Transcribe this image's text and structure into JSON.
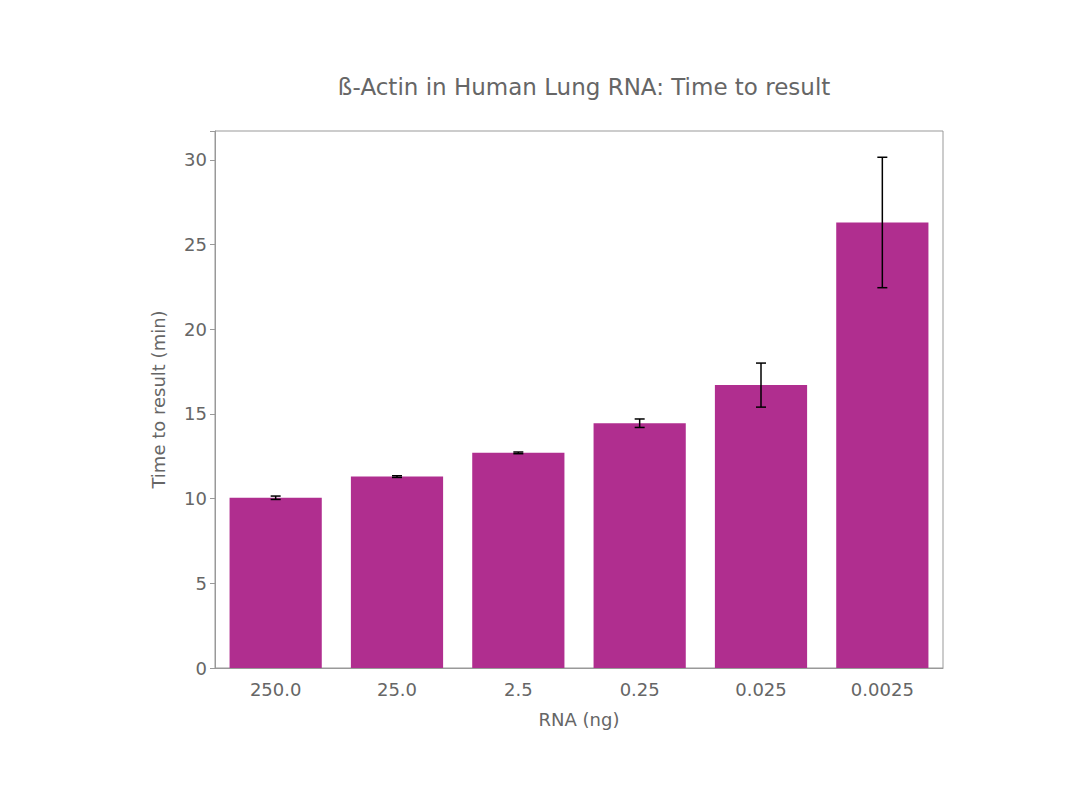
{
  "chart_data": {
    "type": "bar",
    "title": "ß-Actin in Human Lung RNA: Time to result",
    "x_label": "RNA (ng)",
    "y_label": "Time to result (min)",
    "categories": [
      "250.0",
      "25.0",
      "2.5",
      "0.25",
      "0.025",
      "0.0025"
    ],
    "values": [
      10.05,
      11.3,
      12.7,
      14.45,
      16.7,
      26.3
    ],
    "errors": [
      0.1,
      0.05,
      0.05,
      0.25,
      1.3,
      3.85
    ],
    "color": "#b02e8f",
    "ylim": [
      0,
      31.7
    ],
    "yticks": [
      0,
      5,
      10,
      15,
      20,
      25,
      30
    ],
    "grid": false
  }
}
